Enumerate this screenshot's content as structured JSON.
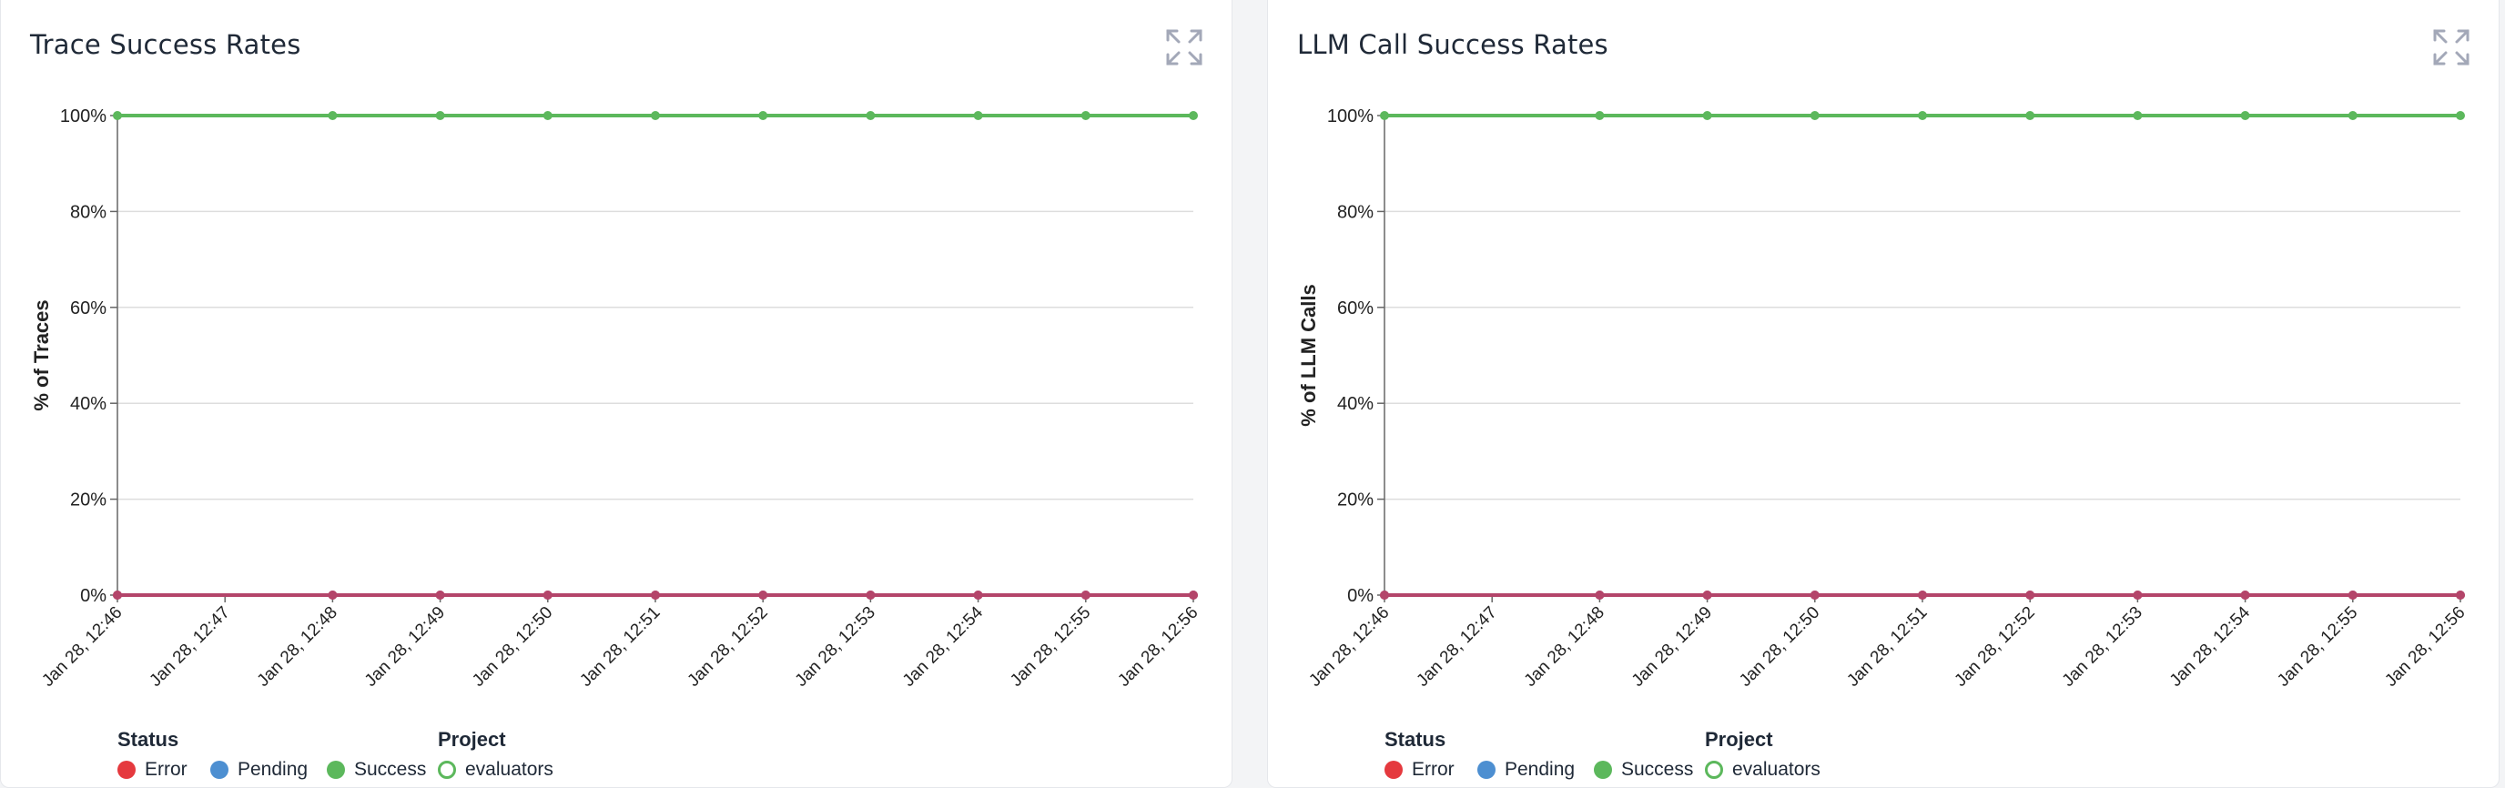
{
  "panels": [
    {
      "title": "Trace Success Rates",
      "expand_icon": "expand-icon"
    },
    {
      "title": "LLM Call Success Rates",
      "expand_icon": "expand-icon"
    }
  ],
  "legend": {
    "status_title": "Status",
    "status_items": [
      {
        "label": "Error",
        "color": "#e5393e"
      },
      {
        "label": "Pending",
        "color": "#4d8fd1"
      },
      {
        "label": "Success",
        "color": "#5cb85c"
      }
    ],
    "project_title": "Project",
    "project_items": [
      {
        "label": "evaluators",
        "color": "#5cb85c"
      }
    ]
  },
  "colors": {
    "success": "#5cb85c",
    "error": "#e5393e",
    "zero_line": "#b4456a",
    "grid": "#dddddd",
    "axis": "#666666"
  },
  "chart_data": [
    {
      "type": "line",
      "title": "Trace Success Rates",
      "xlabel": "",
      "ylabel": "% of Traces",
      "ylim": [
        0,
        100
      ],
      "yticks": [
        "0%",
        "20%",
        "40%",
        "60%",
        "80%",
        "100%"
      ],
      "categories": [
        "Jan 28, 12:46",
        "Jan 28, 12:47",
        "Jan 28, 12:48",
        "Jan 28, 12:49",
        "Jan 28, 12:50",
        "Jan 28, 12:51",
        "Jan 28, 12:52",
        "Jan 28, 12:53",
        "Jan 28, 12:54",
        "Jan 28, 12:55",
        "Jan 28, 12:56"
      ],
      "series": [
        {
          "name": "Success",
          "values": [
            100,
            null,
            100,
            100,
            100,
            100,
            100,
            100,
            100,
            100,
            100
          ]
        },
        {
          "name": "Error",
          "values": [
            0,
            null,
            0,
            0,
            0,
            0,
            0,
            0,
            0,
            0,
            0
          ]
        },
        {
          "name": "Pending",
          "values": [
            0,
            null,
            0,
            0,
            0,
            0,
            0,
            0,
            0,
            0,
            0
          ]
        }
      ],
      "grid": true
    },
    {
      "type": "line",
      "title": "LLM Call Success Rates",
      "xlabel": "",
      "ylabel": "% of LLM Calls",
      "ylim": [
        0,
        100
      ],
      "yticks": [
        "0%",
        "20%",
        "40%",
        "60%",
        "80%",
        "100%"
      ],
      "categories": [
        "Jan 28, 12:46",
        "Jan 28, 12:47",
        "Jan 28, 12:48",
        "Jan 28, 12:49",
        "Jan 28, 12:50",
        "Jan 28, 12:51",
        "Jan 28, 12:52",
        "Jan 28, 12:53",
        "Jan 28, 12:54",
        "Jan 28, 12:55",
        "Jan 28, 12:56"
      ],
      "series": [
        {
          "name": "Success",
          "values": [
            100,
            null,
            100,
            100,
            100,
            100,
            100,
            100,
            100,
            100,
            100
          ]
        },
        {
          "name": "Error",
          "values": [
            0,
            null,
            0,
            0,
            0,
            0,
            0,
            0,
            0,
            0,
            0
          ]
        },
        {
          "name": "Pending",
          "values": [
            0,
            null,
            0,
            0,
            0,
            0,
            0,
            0,
            0,
            0,
            0
          ]
        }
      ],
      "grid": true
    }
  ]
}
